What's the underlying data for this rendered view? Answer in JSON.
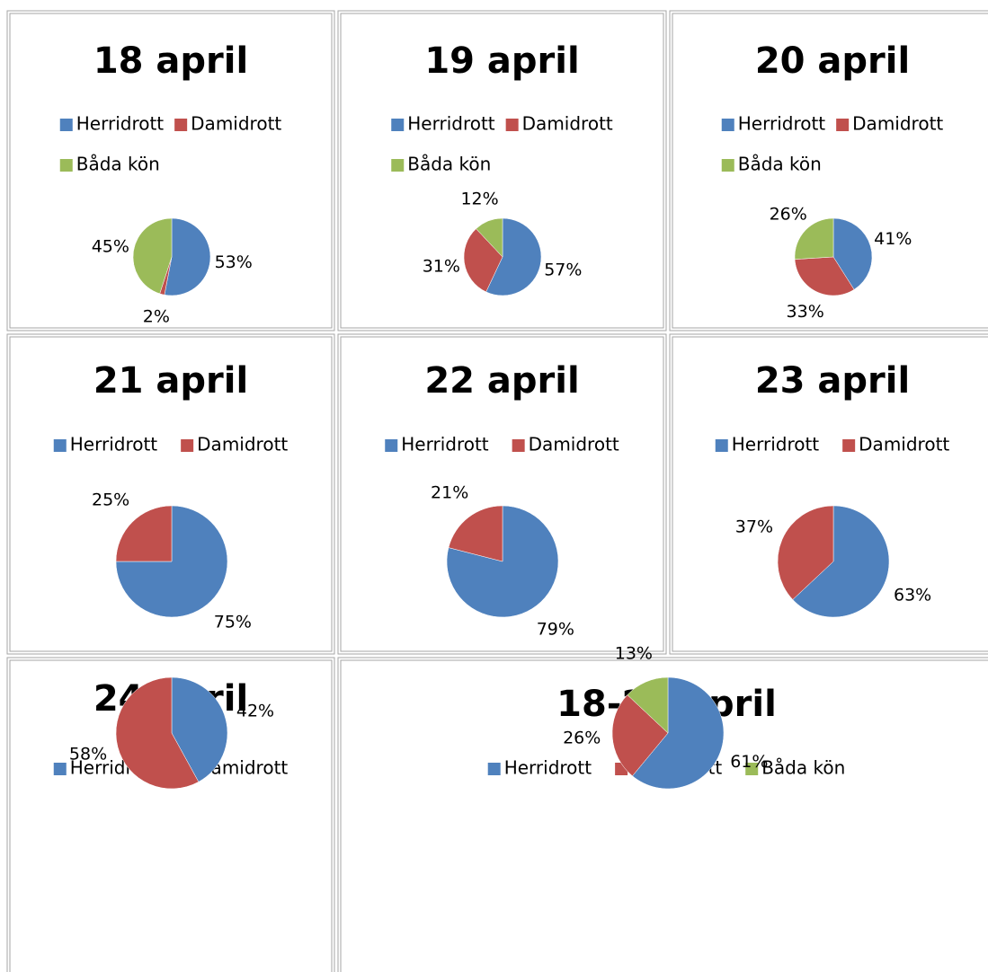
{
  "chart_data": [
    {
      "type": "pie",
      "title": "18 april",
      "categories": [
        "Herridrott",
        "Damidrott",
        "Båda kön"
      ],
      "values": [
        53,
        2,
        45
      ],
      "value_labels": [
        "53%",
        "2%",
        "45%"
      ],
      "colors": [
        "#4f81bd",
        "#c0504d",
        "#9bbb59"
      ]
    },
    {
      "type": "pie",
      "title": "19 april",
      "categories": [
        "Herridrott",
        "Damidrott",
        "Båda kön"
      ],
      "values": [
        57,
        31,
        12
      ],
      "value_labels": [
        "57%",
        "31%",
        "12%"
      ],
      "colors": [
        "#4f81bd",
        "#c0504d",
        "#9bbb59"
      ]
    },
    {
      "type": "pie",
      "title": "20 april",
      "categories": [
        "Herridrott",
        "Damidrott",
        "Båda kön"
      ],
      "values": [
        41,
        33,
        26
      ],
      "value_labels": [
        "41%",
        "33%",
        "26%"
      ],
      "colors": [
        "#4f81bd",
        "#c0504d",
        "#9bbb59"
      ]
    },
    {
      "type": "pie",
      "title": "21 april",
      "categories": [
        "Herridrott",
        "Damidrott"
      ],
      "values": [
        75,
        25
      ],
      "value_labels": [
        "75%",
        "25%"
      ],
      "colors": [
        "#4f81bd",
        "#c0504d"
      ]
    },
    {
      "type": "pie",
      "title": "22 april",
      "categories": [
        "Herridrott",
        "Damidrott"
      ],
      "values": [
        79,
        21
      ],
      "value_labels": [
        "79%",
        "21%"
      ],
      "colors": [
        "#4f81bd",
        "#c0504d"
      ]
    },
    {
      "type": "pie",
      "title": "23 april",
      "categories": [
        "Herridrott",
        "Damidrott"
      ],
      "values": [
        63,
        37
      ],
      "value_labels": [
        "63%",
        "37%"
      ],
      "colors": [
        "#4f81bd",
        "#c0504d"
      ]
    },
    {
      "type": "pie",
      "title": "24 april",
      "categories": [
        "Herridrott",
        "Damidrott"
      ],
      "values": [
        42,
        58
      ],
      "value_labels": [
        "42%",
        "58%"
      ],
      "colors": [
        "#4f81bd",
        "#c0504d"
      ]
    },
    {
      "type": "pie",
      "title": "18-24 april",
      "categories": [
        "Herridrott",
        "Damidrott",
        "Båda kön"
      ],
      "values": [
        61,
        26,
        13
      ],
      "value_labels": [
        "61%",
        "26%",
        "13%"
      ],
      "colors": [
        "#4f81bd",
        "#c0504d",
        "#9bbb59"
      ]
    }
  ]
}
